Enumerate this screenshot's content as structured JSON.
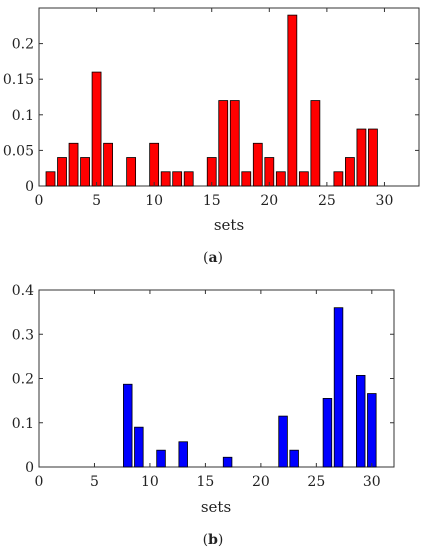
{
  "chart_data": [
    {
      "type": "bar",
      "panel_label": {
        "open": "(",
        "letter": "a",
        "close": ")"
      },
      "xlabel": "sets",
      "ylabel": "",
      "xlim": [
        0,
        33
      ],
      "ylim": [
        0,
        0.25
      ],
      "xticks": [
        0,
        5,
        10,
        15,
        20,
        25,
        30
      ],
      "yticks": [
        0,
        0.05,
        0.1,
        0.15,
        0.2
      ],
      "ytick_labels": [
        "0",
        "0.05",
        "0.1",
        "0.15",
        "0.2"
      ],
      "grid": false,
      "bar_color": "#ff0000",
      "x": [
        1,
        2,
        3,
        4,
        5,
        6,
        8,
        10,
        11,
        12,
        13,
        15,
        16,
        17,
        18,
        19,
        20,
        21,
        22,
        23,
        24,
        26,
        27,
        28,
        29
      ],
      "values": [
        0.02,
        0.04,
        0.06,
        0.04,
        0.16,
        0.06,
        0.04,
        0.06,
        0.02,
        0.02,
        0.02,
        0.04,
        0.12,
        0.12,
        0.02,
        0.06,
        0.04,
        0.02,
        0.24,
        0.02,
        0.12,
        0.02,
        0.04,
        0.08,
        0.08
      ]
    },
    {
      "type": "bar",
      "panel_label": {
        "open": "(",
        "letter": "b",
        "close": ")"
      },
      "xlabel": "sets",
      "ylabel": "",
      "xlim": [
        0,
        32
      ],
      "ylim": [
        0,
        0.4
      ],
      "xticks": [
        0,
        5,
        10,
        15,
        20,
        25,
        30
      ],
      "yticks": [
        0,
        0.1,
        0.2,
        0.3,
        0.4
      ],
      "ytick_labels": [
        "0",
        "0.1",
        "0.2",
        "0.3",
        "0.4"
      ],
      "grid": false,
      "bar_color": "#0000ff",
      "x": [
        8,
        9,
        11,
        13,
        17,
        22,
        23,
        26,
        27,
        29,
        30
      ],
      "values": [
        0.187,
        0.09,
        0.038,
        0.057,
        0.022,
        0.115,
        0.038,
        0.155,
        0.36,
        0.207,
        0.166
      ]
    }
  ]
}
